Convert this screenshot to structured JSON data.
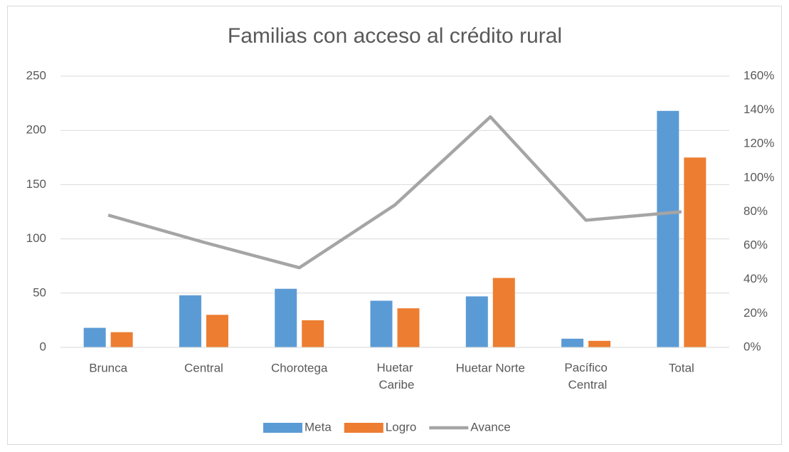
{
  "chart_data": {
    "type": "bar-line",
    "title": "Familias con acceso al crédito rural",
    "categories": [
      "Brunca",
      "Central",
      "Chorotega",
      "Huetar Caribe",
      "Huetar Norte",
      "Pacífico Central",
      "Total"
    ],
    "series": [
      {
        "name": "Meta",
        "color": "#5b9bd5",
        "type": "bar",
        "values": [
          18,
          48,
          54,
          43,
          47,
          8,
          218
        ]
      },
      {
        "name": "Logro",
        "color": "#ed7d31",
        "type": "bar",
        "values": [
          14,
          30,
          25,
          36,
          64,
          6,
          175
        ]
      },
      {
        "name": "Avance",
        "color": "#a5a5a5",
        "type": "line",
        "axis": "y2",
        "values": [
          78,
          62,
          47,
          84,
          136,
          75,
          80
        ]
      }
    ],
    "ylim": [
      0,
      250
    ],
    "yticks": [
      0,
      50,
      100,
      150,
      200,
      250
    ],
    "y2lim": [
      0,
      160
    ],
    "y2ticks": [
      {
        "value": 0,
        "label": "0%"
      },
      {
        "value": 20,
        "label": "20%"
      },
      {
        "value": 40,
        "label": "40%"
      },
      {
        "value": 60,
        "label": "60%"
      },
      {
        "value": 80,
        "label": "80%"
      },
      {
        "value": 100,
        "label": "100%"
      },
      {
        "value": 120,
        "label": "120%"
      },
      {
        "value": 140,
        "label": "140%"
      },
      {
        "value": 160,
        "label": "160%"
      }
    ],
    "grid": true,
    "legend": "bottom"
  }
}
